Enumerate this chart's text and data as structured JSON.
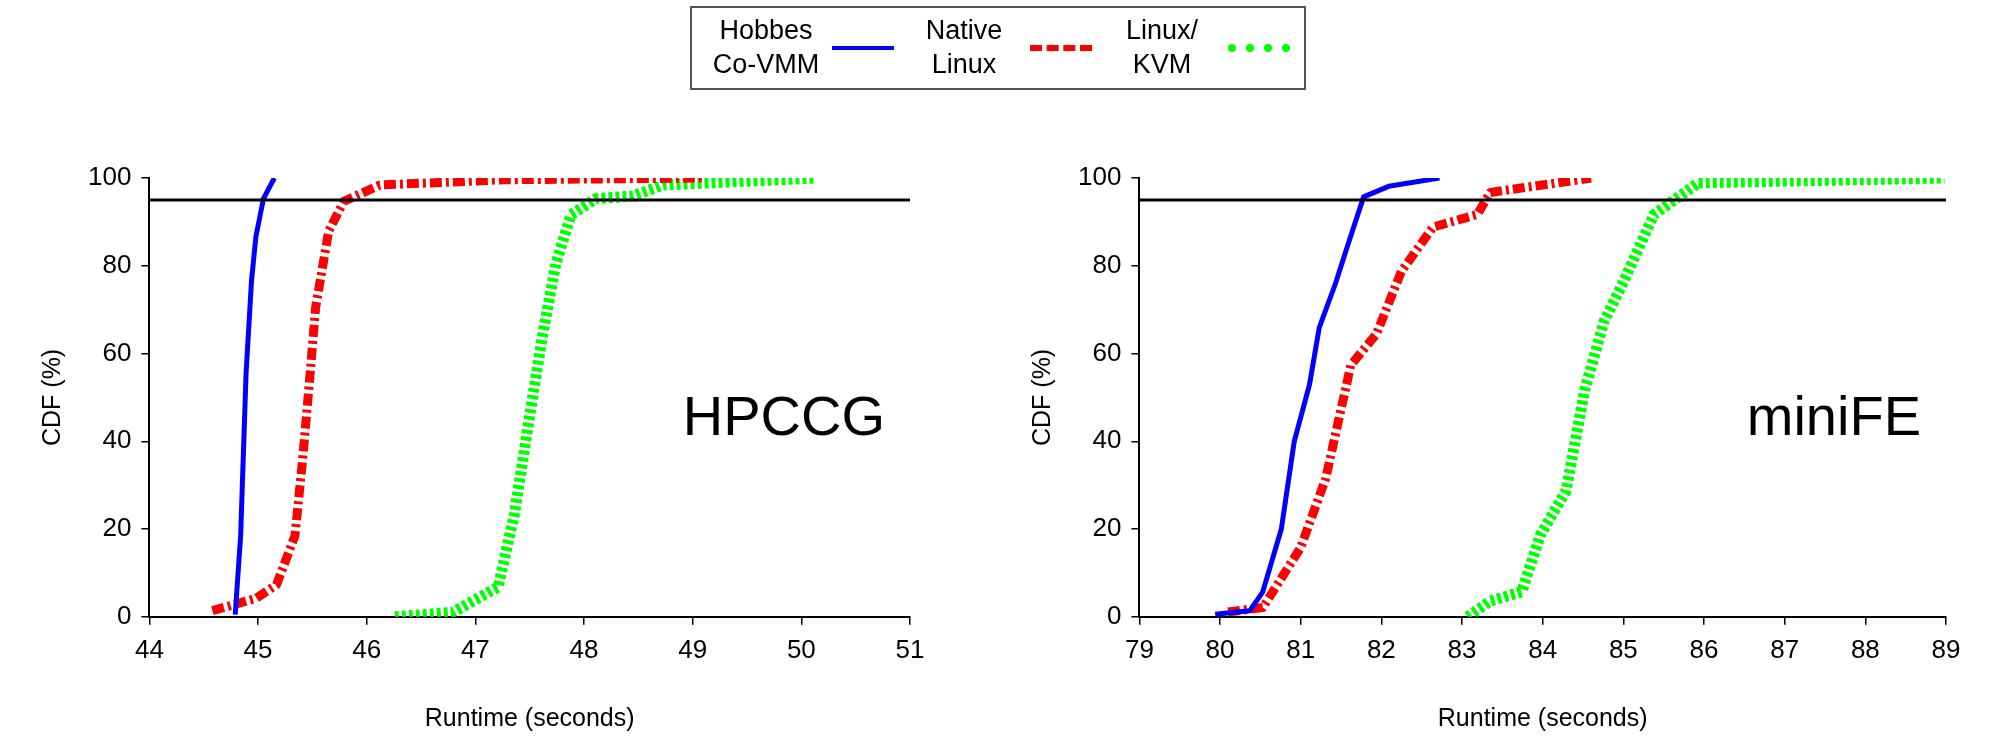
{
  "chart_data": [
    {
      "type": "line",
      "xlabel": "Runtime (seconds)",
      "ylabel": "CDF (%)",
      "annotations": [
        "HPCCG"
      ],
      "xlim": [
        44,
        51
      ],
      "xticks": [
        44,
        45,
        46,
        47,
        48,
        49,
        50,
        51
      ],
      "ylim": [
        0,
        100
      ],
      "yticks": [
        0,
        20,
        40,
        60,
        80,
        100
      ],
      "grid": false,
      "legend": "top",
      "marker": "none",
      "ref_lines": [
        {
          "axis": "y",
          "value": 95,
          "color": "#000000"
        }
      ],
      "series": [
        {
          "name": "Hobbes Co-VMM",
          "color": "#0000ff",
          "line_style": "solid",
          "x": [
            44.79,
            44.84,
            44.89,
            44.94,
            44.98,
            45.05,
            45.15
          ],
          "values": [
            0.5,
            18.5,
            55.6,
            76.6,
            86.6,
            95.3,
            100
          ]
        },
        {
          "name": "Native Linux",
          "color": "#ff0000",
          "line_style": "dashed",
          "x": [
            44.58,
            44.98,
            45.17,
            45.34,
            45.41,
            45.48,
            45.53,
            45.65,
            45.79,
            46.12,
            47.26,
            49.09
          ],
          "values": [
            1.4,
            4.2,
            7.3,
            18.5,
            35.8,
            55.6,
            70.5,
            87.9,
            94.7,
            98.4,
            99.6,
            100
          ]
        },
        {
          "name": "Linux/ KVM",
          "color": "#00ff00",
          "line_style": "dotted",
          "x": [
            46.26,
            46.79,
            47.21,
            47.36,
            47.5,
            47.62,
            47.74,
            47.88,
            48.11,
            48.45,
            48.73,
            50.13
          ],
          "values": [
            0,
            1,
            6.8,
            23.5,
            45.8,
            64.3,
            80.4,
            91.6,
            95.3,
            95.9,
            98.4,
            100
          ]
        }
      ]
    },
    {
      "type": "line",
      "xlabel": "Runtime (seconds)",
      "ylabel": "CDF (%)",
      "annotations": [
        "miniFE"
      ],
      "xlim": [
        79,
        89
      ],
      "xticks": [
        79,
        80,
        81,
        82,
        83,
        84,
        85,
        86,
        87,
        88,
        89
      ],
      "ylim": [
        0,
        100
      ],
      "yticks": [
        0,
        20,
        40,
        60,
        80,
        100
      ],
      "grid": false,
      "marker": "none",
      "ref_lines": [
        {
          "axis": "y",
          "value": 95,
          "color": "#000000"
        }
      ],
      "series": [
        {
          "color": "#0000ff",
          "line_style": "solid",
          "x": [
            79.94,
            80.37,
            80.53,
            80.76,
            80.92,
            81.11,
            81.23,
            81.43,
            81.58,
            81.78,
            82.09,
            82.72
          ],
          "values": [
            0.6,
            1.4,
            5.7,
            20,
            40,
            53,
            65.9,
            75.9,
            84.5,
            95.7,
            98.1,
            100
          ]
        },
        {
          "color": "#ff0000",
          "line_style": "dashed",
          "x": [
            80.1,
            80.53,
            81.0,
            81.31,
            81.62,
            81.94,
            82.25,
            82.64,
            83.19,
            83.35,
            84.6
          ],
          "values": [
            1.1,
            2.1,
            15.8,
            31.5,
            57.3,
            64.5,
            78.8,
            88.8,
            91.7,
            96.7,
            100
          ]
        },
        {
          "color": "#00ff00",
          "line_style": "dotted",
          "x": [
            83.07,
            83.35,
            83.74,
            83.97,
            84.29,
            84.52,
            84.76,
            84.99,
            85.38,
            85.93,
            88.98
          ],
          "values": [
            0,
            3.6,
            5.7,
            18.6,
            28.7,
            51.6,
            67.3,
            75.9,
            91.7,
            98.9,
            100
          ]
        }
      ]
    }
  ]
}
